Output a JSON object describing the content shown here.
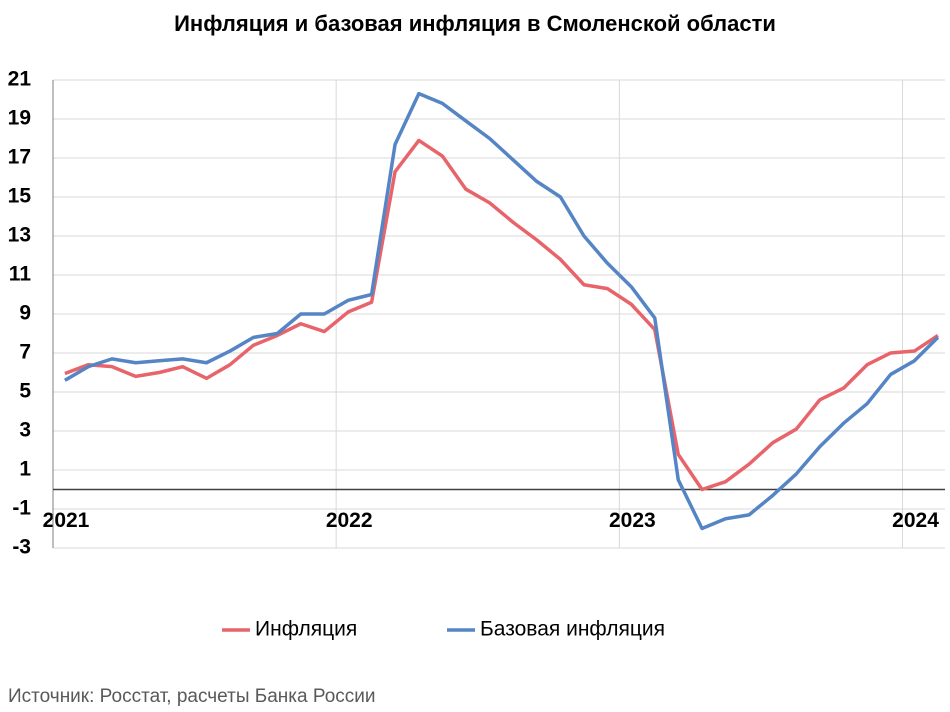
{
  "chart_data": {
    "type": "line",
    "title": "Инфляция и базовая инфляция в Смоленской области",
    "source": "Источник: Росстат, расчеты Банка России",
    "x": [
      2021.042,
      2021.125,
      2021.208,
      2021.292,
      2021.375,
      2021.458,
      2021.542,
      2021.625,
      2021.708,
      2021.792,
      2021.875,
      2021.958,
      2022.042,
      2022.125,
      2022.208,
      2022.292,
      2022.375,
      2022.458,
      2022.542,
      2022.625,
      2022.708,
      2022.792,
      2022.875,
      2022.958,
      2023.042,
      2023.125,
      2023.208,
      2023.292,
      2023.375,
      2023.458,
      2023.542,
      2023.625,
      2023.708,
      2023.792,
      2023.875,
      2023.958,
      2024.042,
      2024.125
    ],
    "xlim": [
      2021,
      2024.15
    ],
    "xticks": [
      2021,
      2022,
      2023,
      2024
    ],
    "ylim": [
      -3,
      21
    ],
    "yticks": [
      -3,
      -1,
      1,
      3,
      5,
      7,
      9,
      11,
      13,
      15,
      17,
      19,
      21
    ],
    "grid": true,
    "legend": "bottom",
    "series": [
      {
        "name": "Инфляция",
        "color": "#e8646b",
        "values": [
          5.95,
          6.4,
          6.3,
          5.8,
          6.0,
          6.3,
          5.7,
          6.4,
          7.4,
          7.9,
          8.5,
          8.1,
          9.1,
          9.6,
          16.3,
          17.9,
          17.1,
          15.4,
          14.7,
          13.7,
          12.8,
          11.8,
          10.5,
          10.3,
          9.5,
          8.2,
          1.8,
          0.0,
          0.4,
          1.3,
          2.4,
          3.1,
          4.6,
          5.2,
          6.4,
          7.0,
          7.1,
          7.9
        ]
      },
      {
        "name": "Базовая инфляция",
        "color": "#5585c5",
        "values": [
          5.6,
          6.3,
          6.7,
          6.5,
          6.6,
          6.7,
          6.5,
          7.1,
          7.8,
          8.0,
          9.0,
          9.0,
          9.7,
          10.0,
          17.7,
          20.3,
          19.8,
          18.9,
          18.0,
          16.9,
          15.8,
          15.0,
          13.0,
          11.6,
          10.4,
          8.8,
          0.5,
          -2.0,
          -1.5,
          -1.3,
          -0.3,
          0.8,
          2.2,
          3.4,
          4.4,
          5.9,
          6.6,
          7.8
        ]
      }
    ]
  }
}
